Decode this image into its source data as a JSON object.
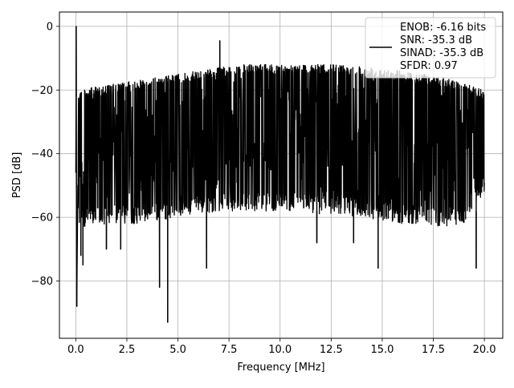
{
  "chart_data": {
    "type": "line",
    "title": "",
    "xlabel": "Frequency [MHz]",
    "ylabel": "PSD [dB]",
    "xlim": [
      -0.8,
      20.9
    ],
    "ylim": [
      -98,
      4.5
    ],
    "xticks": [
      0.0,
      2.5,
      5.0,
      7.5,
      10.0,
      12.5,
      15.0,
      17.5,
      20.0
    ],
    "xtick_labels": [
      "0.0",
      "2.5",
      "5.0",
      "7.5",
      "10.0",
      "12.5",
      "15.0",
      "17.5",
      "20.0"
    ],
    "yticks": [
      0,
      -20,
      -40,
      -60,
      -80
    ],
    "ytick_labels": [
      "0",
      "−20",
      "−40",
      "−60",
      "−80"
    ],
    "grid": true,
    "legend_position": "top-right",
    "series": [
      {
        "name": "",
        "color": "#000000",
        "upper_envelope": {
          "x": [
            0.1,
            1.0,
            2.0,
            3.0,
            4.0,
            5.0,
            6.0,
            7.0,
            8.0,
            9.0,
            10.0,
            11.0,
            12.0,
            13.0,
            14.0,
            15.0,
            16.0,
            17.0,
            18.0,
            19.0,
            20.0
          ],
          "y": [
            -20,
            -19,
            -18,
            -17,
            -16,
            -15,
            -14,
            -13,
            -12,
            -12,
            -12,
            -12,
            -12,
            -12,
            -12.5,
            -13,
            -14,
            -15,
            -16,
            -18,
            -20
          ]
        },
        "lower_envelope": {
          "x": [
            0.1,
            1.0,
            2.0,
            3.0,
            4.0,
            5.0,
            6.0,
            7.0,
            8.0,
            9.0,
            10.0,
            11.0,
            12.0,
            13.0,
            14.0,
            15.0,
            16.0,
            17.0,
            18.0,
            19.0,
            20.0
          ],
          "y": [
            -63,
            -63,
            -62,
            -62,
            -61,
            -60,
            -59,
            -58,
            -58,
            -58,
            -58,
            -58,
            -59,
            -59,
            -60,
            -61,
            -62,
            -62,
            -63,
            -62,
            -52
          ]
        },
        "spikes": [
          {
            "x": 0.02,
            "y": 0.0
          },
          {
            "x": 0.05,
            "y": -88
          },
          {
            "x": 0.25,
            "y": -72
          },
          {
            "x": 0.35,
            "y": -75
          },
          {
            "x": 1.5,
            "y": -70
          },
          {
            "x": 2.2,
            "y": -70
          },
          {
            "x": 4.1,
            "y": -82
          },
          {
            "x": 4.5,
            "y": -93
          },
          {
            "x": 6.4,
            "y": -76
          },
          {
            "x": 7.05,
            "y": -4.5
          },
          {
            "x": 11.8,
            "y": -68
          },
          {
            "x": 13.6,
            "y": -68
          },
          {
            "x": 14.8,
            "y": -76
          },
          {
            "x": 19.6,
            "y": -76
          }
        ]
      }
    ],
    "legend_lines": [
      "ENOB: -6.16 bits",
      "SNR: -35.3 dB",
      "SINAD: -35.3 dB",
      "SFDR: 0.97"
    ]
  }
}
